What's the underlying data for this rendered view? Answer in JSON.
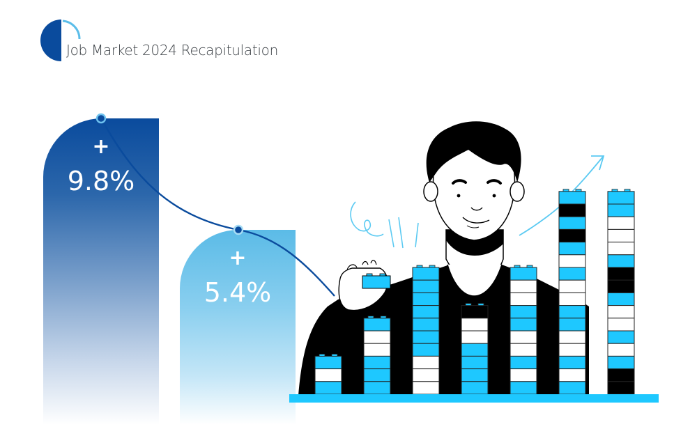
{
  "header": {
    "title": "Job Market 2024 Recapitulation",
    "logo_colors": {
      "dark": "#0a4b9d",
      "light": "#5bbde9"
    }
  },
  "stats": [
    {
      "sign": "+",
      "value": "9.8%",
      "color": "#0a4b9d"
    },
    {
      "sign": "+",
      "value": "5.4%",
      "color": "#5bbbe7"
    }
  ],
  "illustration": {
    "description": "Person stacking lego bricks forming a bar chart with an upward arrow",
    "colors": {
      "brick_blue": "#1ec8ff",
      "black": "#000000",
      "white": "#ffffff",
      "base": "#1ec8ff",
      "doodle": "#5bcaf2"
    },
    "stacks": [
      [
        "b",
        "w",
        "b"
      ],
      [
        "b",
        "w",
        "w",
        "b",
        "b",
        "b"
      ],
      [
        "b",
        "b",
        "b",
        "b",
        "b",
        "b",
        "b",
        "w",
        "w",
        "w"
      ],
      [
        "k",
        "w",
        "w",
        "b",
        "b",
        "b",
        "b"
      ],
      [
        "b",
        "w",
        "w",
        "b",
        "b",
        "w",
        "w",
        "b",
        "w",
        "b"
      ],
      [
        "b",
        "k",
        "b",
        "k",
        "b",
        "w",
        "b",
        "w",
        "w",
        "b",
        "b",
        "w",
        "w",
        "b",
        "w",
        "b"
      ],
      [
        "b",
        "b",
        "w",
        "w",
        "w",
        "b",
        "k",
        "k",
        "b",
        "w",
        "w",
        "b",
        "w",
        "b",
        "k",
        "k"
      ]
    ]
  }
}
